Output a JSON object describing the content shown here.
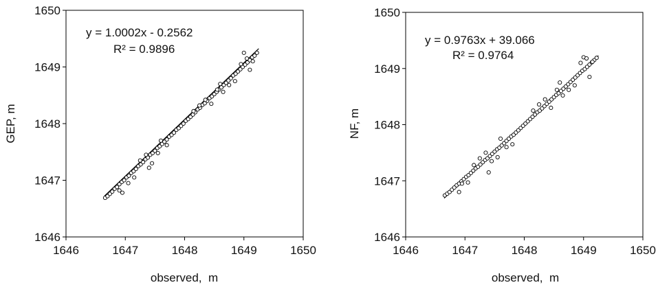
{
  "chart_data": [
    {
      "type": "scatter",
      "title": "",
      "xlabel": "observed,  m",
      "ylabel": "GEP, m",
      "xlim": [
        1646,
        1650
      ],
      "ylim": [
        1646,
        1650
      ],
      "xticks": [
        "1646",
        "1647",
        "1648",
        "1649",
        "1650"
      ],
      "yticks": [
        "1646",
        "1647",
        "1648",
        "1649",
        "1650"
      ],
      "grid": false,
      "legend": "none",
      "annotations": {
        "equation": "y = 1.0002x  - 0.2562",
        "r2": "R² = 0.9896"
      },
      "trendline": {
        "slope": 1.0002,
        "intercept": -0.2562,
        "x_range": [
          1646.65,
          1649.25
        ]
      },
      "series": [
        {
          "x": [
            1646.66,
            1646.7,
            1646.74,
            1646.78,
            1646.82,
            1646.86,
            1646.9,
            1646.94,
            1646.98,
            1647.02,
            1647.06,
            1647.1,
            1647.14,
            1647.18,
            1647.22,
            1647.26,
            1647.3,
            1647.34,
            1647.38,
            1647.42,
            1647.46,
            1647.5,
            1647.54,
            1647.58,
            1647.62,
            1647.66,
            1647.7,
            1647.74,
            1647.78,
            1647.82,
            1647.86,
            1647.9,
            1647.94,
            1647.98,
            1648.02,
            1648.06,
            1648.1,
            1648.14,
            1648.18,
            1648.22,
            1648.26,
            1648.3,
            1648.34,
            1648.38,
            1648.42,
            1648.46,
            1648.5,
            1648.54,
            1648.58,
            1648.62,
            1648.66,
            1648.7,
            1648.74,
            1648.78,
            1648.82,
            1648.86,
            1648.9,
            1648.94,
            1648.98,
            1649.02,
            1649.06,
            1649.1,
            1649.14,
            1649.18,
            1649.22,
            1646.95,
            1647.25,
            1647.45,
            1647.6,
            1648.45,
            1648.6,
            1648.85,
            1649.0,
            1649.1,
            1646.9,
            1647.15,
            1647.4,
            1648.25,
            1648.65,
            1649.05,
            1647.35,
            1647.7,
            1648.15,
            1648.75,
            1648.95,
            1647.05,
            1647.55,
            1648.35,
            1648.55,
            1649.15
          ],
          "y": [
            1646.69,
            1646.72,
            1646.76,
            1646.8,
            1646.85,
            1646.88,
            1646.93,
            1646.97,
            1647.0,
            1647.05,
            1647.08,
            1647.13,
            1647.16,
            1647.2,
            1647.25,
            1647.28,
            1647.32,
            1647.37,
            1647.4,
            1647.45,
            1647.48,
            1647.52,
            1647.57,
            1647.6,
            1647.64,
            1647.68,
            1647.72,
            1647.77,
            1647.8,
            1647.84,
            1647.89,
            1647.92,
            1647.96,
            1648.0,
            1648.05,
            1648.08,
            1648.12,
            1648.16,
            1648.2,
            1648.25,
            1648.28,
            1648.33,
            1648.36,
            1648.4,
            1648.45,
            1648.48,
            1648.52,
            1648.56,
            1648.6,
            1648.64,
            1648.68,
            1648.72,
            1648.76,
            1648.8,
            1648.85,
            1648.88,
            1648.92,
            1648.96,
            1649.0,
            1649.04,
            1649.08,
            1649.12,
            1649.17,
            1649.2,
            1649.25,
            1646.78,
            1647.35,
            1647.3,
            1647.7,
            1648.35,
            1648.7,
            1648.75,
            1649.25,
            1648.95,
            1646.82,
            1647.05,
            1647.22,
            1648.32,
            1648.56,
            1649.15,
            1647.45,
            1647.62,
            1648.22,
            1648.68,
            1649.05,
            1646.95,
            1647.48,
            1648.42,
            1648.6,
            1649.1
          ]
        }
      ]
    },
    {
      "type": "scatter",
      "title": "",
      "xlabel": "observed,  m",
      "ylabel": "NF, m",
      "xlim": [
        1646,
        1650
      ],
      "ylim": [
        1646,
        1650
      ],
      "xticks": [
        "1646",
        "1647",
        "1648",
        "1649",
        "1650"
      ],
      "yticks": [
        "1646",
        "1647",
        "1648",
        "1649",
        "1650"
      ],
      "grid": false,
      "legend": "none",
      "annotations": {
        "equation": "y = 0.9763x  + 39.066",
        "r2": "R² = 0.9764"
      },
      "trendline": {
        "slope": 0.9763,
        "intercept": 39.066,
        "x_range": [
          1646.65,
          1649.25
        ]
      },
      "series": [
        {
          "x": [
            1646.66,
            1646.7,
            1646.74,
            1646.78,
            1646.82,
            1646.86,
            1646.9,
            1646.94,
            1646.98,
            1647.02,
            1647.06,
            1647.1,
            1647.14,
            1647.18,
            1647.22,
            1647.26,
            1647.3,
            1647.34,
            1647.38,
            1647.42,
            1647.46,
            1647.5,
            1647.54,
            1647.58,
            1647.62,
            1647.66,
            1647.7,
            1647.74,
            1647.78,
            1647.82,
            1647.86,
            1647.9,
            1647.94,
            1647.98,
            1648.02,
            1648.06,
            1648.1,
            1648.14,
            1648.18,
            1648.22,
            1648.26,
            1648.3,
            1648.34,
            1648.38,
            1648.42,
            1648.46,
            1648.5,
            1648.54,
            1648.58,
            1648.62,
            1648.66,
            1648.7,
            1648.74,
            1648.78,
            1648.82,
            1648.86,
            1648.9,
            1648.94,
            1648.98,
            1649.02,
            1649.06,
            1649.1,
            1649.14,
            1649.18,
            1649.22,
            1646.95,
            1647.25,
            1647.45,
            1647.6,
            1648.45,
            1648.6,
            1648.85,
            1649.0,
            1649.1,
            1646.9,
            1647.15,
            1647.4,
            1647.8,
            1648.25,
            1648.65,
            1649.05,
            1647.35,
            1647.7,
            1648.15,
            1648.75,
            1648.95,
            1647.05,
            1647.55,
            1648.35,
            1648.55,
            1649.15
          ],
          "y": [
            1646.74,
            1646.77,
            1646.8,
            1646.84,
            1646.88,
            1646.92,
            1646.95,
            1646.99,
            1647.03,
            1647.07,
            1647.1,
            1647.14,
            1647.18,
            1647.22,
            1647.25,
            1647.29,
            1647.33,
            1647.37,
            1647.4,
            1647.44,
            1647.48,
            1647.52,
            1647.56,
            1647.59,
            1647.63,
            1647.67,
            1647.71,
            1647.75,
            1647.79,
            1647.82,
            1647.86,
            1647.9,
            1647.94,
            1647.98,
            1648.02,
            1648.06,
            1648.1,
            1648.14,
            1648.18,
            1648.22,
            1648.25,
            1648.29,
            1648.33,
            1648.37,
            1648.41,
            1648.45,
            1648.49,
            1648.53,
            1648.56,
            1648.6,
            1648.64,
            1648.68,
            1648.72,
            1648.76,
            1648.8,
            1648.84,
            1648.88,
            1648.92,
            1648.96,
            1648.99,
            1649.03,
            1649.07,
            1649.11,
            1649.15,
            1649.19,
            1646.95,
            1647.4,
            1647.35,
            1647.75,
            1648.3,
            1648.75,
            1648.7,
            1649.2,
            1648.85,
            1646.8,
            1647.28,
            1647.15,
            1647.65,
            1648.36,
            1648.52,
            1649.18,
            1647.5,
            1647.6,
            1648.25,
            1648.62,
            1649.1,
            1646.97,
            1647.42,
            1648.45,
            1648.62,
            1649.12
          ]
        }
      ]
    }
  ]
}
